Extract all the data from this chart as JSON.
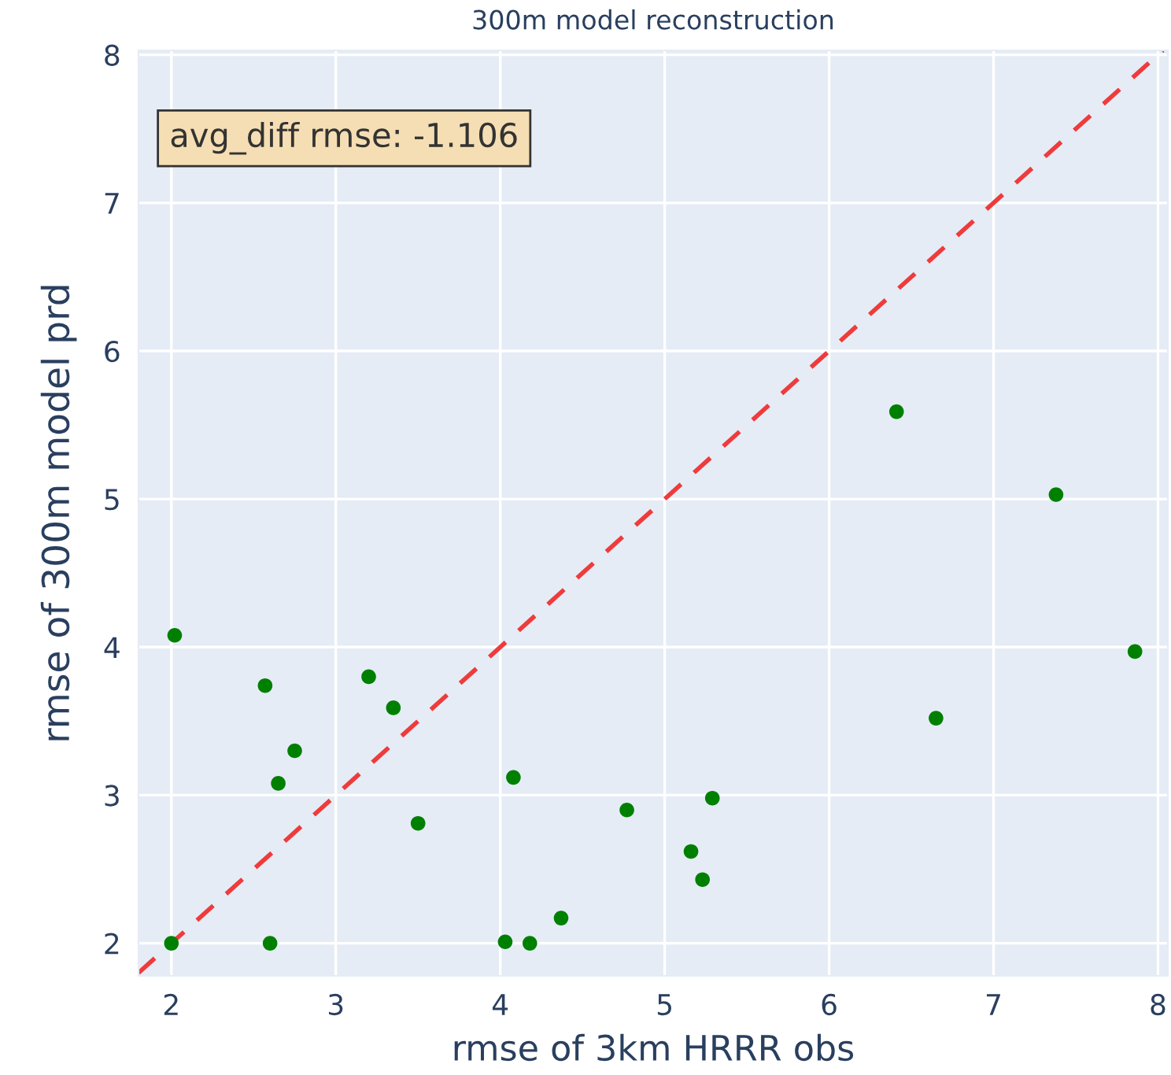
{
  "chart_data": {
    "type": "scatter",
    "title": "300m model reconstruction",
    "xlabel": "rmse of 3km HRRR obs",
    "ylabel": "rmse of 300m model prd",
    "annotations": [
      "avg_diff rmse: -1.106"
    ],
    "x": [
      2.0,
      2.02,
      2.57,
      2.6,
      2.65,
      2.75,
      3.2,
      3.35,
      3.5,
      4.03,
      4.08,
      4.18,
      4.37,
      4.77,
      5.16,
      5.23,
      5.29,
      6.41,
      6.65,
      7.38,
      7.86
    ],
    "series": [
      {
        "color": "#008000",
        "marker": "circle",
        "values": [
          2.0,
          4.08,
          3.74,
          2.0,
          3.08,
          3.3,
          3.8,
          3.59,
          2.81,
          2.01,
          3.12,
          2.0,
          2.17,
          2.9,
          2.62,
          2.43,
          2.98,
          5.59,
          3.52,
          5.03,
          3.97
        ]
      },
      {
        "type": "line",
        "color": "#ef3b3b",
        "line_style": "dashed",
        "marker": "none",
        "x": [
          1.8,
          8.03
        ],
        "values": [
          1.8,
          8.03
        ]
      }
    ],
    "xlim": [
      1.8,
      8.06
    ],
    "ylim": [
      1.78,
      8.03
    ],
    "xticks": [
      2,
      3,
      4,
      5,
      6,
      7,
      8
    ],
    "yticks": [
      2,
      3,
      4,
      5,
      6,
      7,
      8
    ],
    "grid": true
  }
}
